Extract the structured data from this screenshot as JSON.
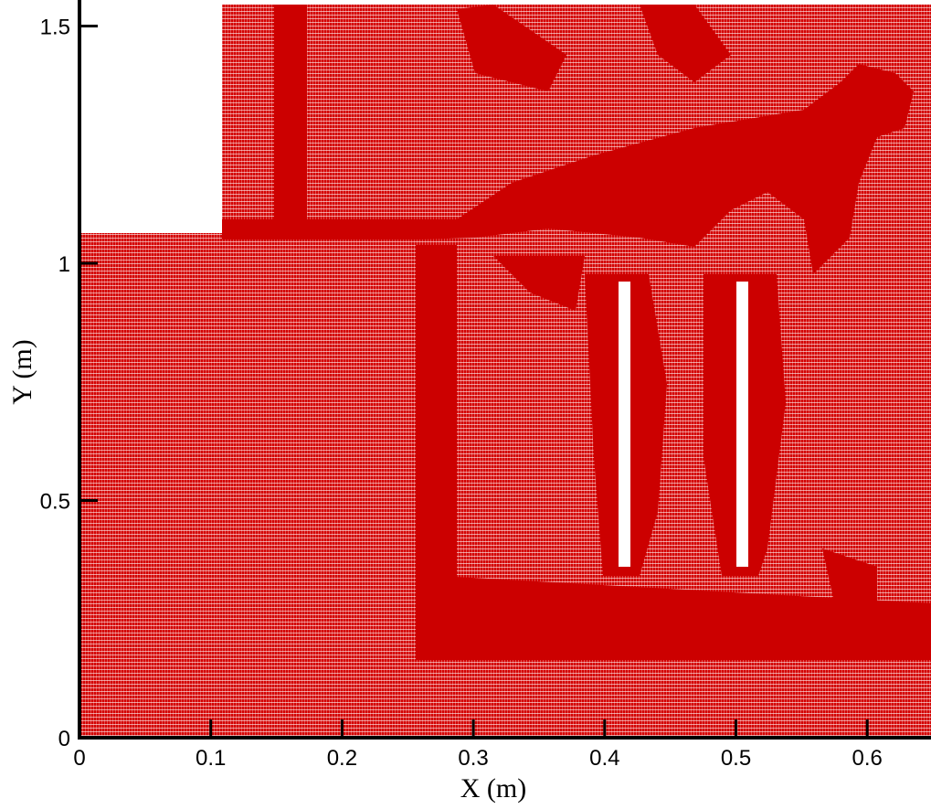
{
  "chart_data": {
    "type": "mesh",
    "x_label": "X (m)",
    "y_label": "Y (m)",
    "xlim": [
      0,
      0.65
    ],
    "ylim": [
      0,
      1.55
    ],
    "xticks": [
      0,
      0.1,
      0.2,
      0.3,
      0.4,
      0.5,
      0.6
    ],
    "yticks": [
      0,
      0.5,
      1,
      1.5
    ],
    "color": "#d40000"
  }
}
